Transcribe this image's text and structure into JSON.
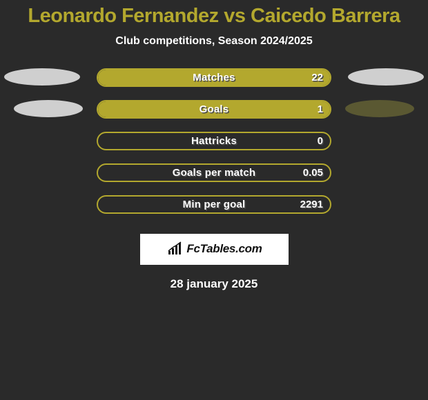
{
  "title": {
    "player1": "Leonardo Fernandez",
    "vs": "vs",
    "player2": "Caicedo Barrera",
    "title_color": "#b3a82e",
    "title_fontsize": 29,
    "title_weight": 900
  },
  "subtitle": "Club competitions, Season 2024/2025",
  "subtitle_color": "#ffffff",
  "subtitle_fontsize": 16,
  "background_color": "#2a2a2a",
  "bar_track_width": 340,
  "bar_track_height": 27,
  "bar_border_radius": 14,
  "rows": [
    {
      "label": "Matches",
      "value": "22",
      "fill_pct": 100,
      "border_color": "#b3a82e",
      "fill_color": "#b3a82e",
      "deco_left_color": "#cfcfcf",
      "deco_right_color": "#cfcfcf"
    },
    {
      "label": "Goals",
      "value": "1",
      "fill_pct": 100,
      "border_color": "#b3a82e",
      "fill_color": "#b3a82e",
      "deco_left_color": "#cfcfcf",
      "deco_right_color": "#5a5832"
    },
    {
      "label": "Hattricks",
      "value": "0",
      "fill_pct": 0,
      "border_color": "#b3a82e",
      "fill_color": "#b3a82e"
    },
    {
      "label": "Goals per match",
      "value": "0.05",
      "fill_pct": 0,
      "border_color": "#b3a82e",
      "fill_color": "#b3a82e"
    },
    {
      "label": "Min per goal",
      "value": "2291",
      "fill_pct": 0,
      "border_color": "#b3a82e",
      "fill_color": "#b3a82e"
    }
  ],
  "label_text_color": "#ffffff",
  "label_shadow_color": "#4a4a4a",
  "attribution": {
    "text": "FcTables.com",
    "bg_color": "#ffffff",
    "text_color": "#111111",
    "icon_color": "#111111"
  },
  "date": "28 january 2025",
  "date_color": "#ffffff",
  "date_fontsize": 17
}
